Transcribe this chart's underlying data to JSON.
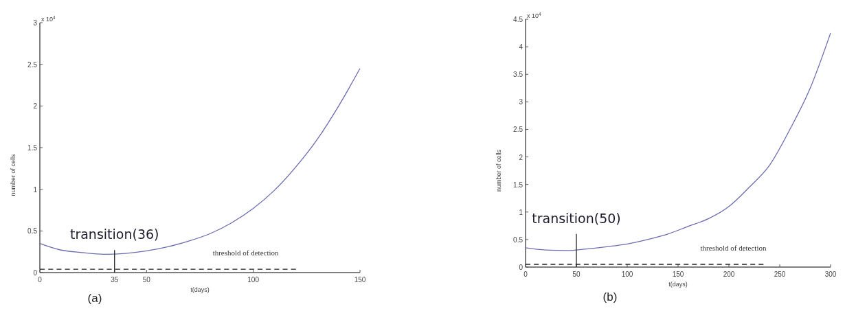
{
  "chart_data": [
    {
      "type": "line",
      "xlabel": "t(days)",
      "ylabel": "number of cells",
      "xlim": [
        0,
        150
      ],
      "ylim": [
        0,
        3
      ],
      "xticks": [
        0,
        35,
        50,
        100,
        150
      ],
      "yticks": [
        0,
        0.5,
        1,
        1.5,
        2,
        2.5,
        3
      ],
      "grid": false,
      "series": [
        {
          "color": "#6b6bb0",
          "x": [
            0,
            10,
            20,
            30,
            40,
            50,
            60,
            70,
            80,
            90,
            100,
            110,
            120,
            130,
            140,
            150
          ],
          "values": [
            0.35,
            0.27,
            0.24,
            0.22,
            0.23,
            0.26,
            0.31,
            0.38,
            0.47,
            0.6,
            0.77,
            0.99,
            1.27,
            1.6,
            2.0,
            2.45
          ]
        },
        {
          "color": "#222222",
          "line_style": "dashed",
          "x": [
            0,
            120
          ],
          "values": [
            0.04,
            0.04
          ]
        },
        {
          "color": "#222222",
          "x": [
            35,
            35
          ],
          "values": [
            0,
            0.27
          ]
        }
      ],
      "annotations": [
        "x 10$^{4}$",
        "(a)",
        {
          "text": "transition(36)",
          "x": 35,
          "y": 0.27
        },
        {
          "text": "threshold of detection",
          "x": 81,
          "y": 0.04
        }
      ]
    },
    {
      "type": "line",
      "xlabel": "t(days)",
      "ylabel": "number of cells",
      "xlim": [
        0,
        300
      ],
      "ylim": [
        0,
        4.5
      ],
      "xticks": [
        0,
        50,
        100,
        150,
        200,
        250,
        300
      ],
      "yticks": [
        0,
        0.5,
        1,
        1.5,
        2,
        2.5,
        3,
        3.5,
        4,
        4.5
      ],
      "grid": false,
      "series": [
        {
          "color": "#6b6bb0",
          "x": [
            0,
            20,
            40,
            60,
            80,
            100,
            120,
            140,
            160,
            180,
            200,
            220,
            240,
            260,
            280,
            300
          ],
          "values": [
            0.35,
            0.31,
            0.3,
            0.33,
            0.37,
            0.42,
            0.5,
            0.6,
            0.74,
            0.88,
            1.1,
            1.45,
            1.85,
            2.5,
            3.25,
            4.25
          ]
        },
        {
          "color": "#222222",
          "line_style": "dashed",
          "x": [
            0,
            234
          ],
          "values": [
            0.05,
            0.05
          ]
        },
        {
          "color": "#222222",
          "x": [
            50,
            50
          ],
          "values": [
            0,
            0.6
          ]
        }
      ],
      "annotations": [
        "x 10$^{4}$",
        "(b)",
        {
          "text": "transition(50)",
          "x": 50,
          "y": 0.6
        },
        {
          "text": "threshold of detection",
          "x": 172,
          "y": 0.05
        }
      ]
    }
  ]
}
